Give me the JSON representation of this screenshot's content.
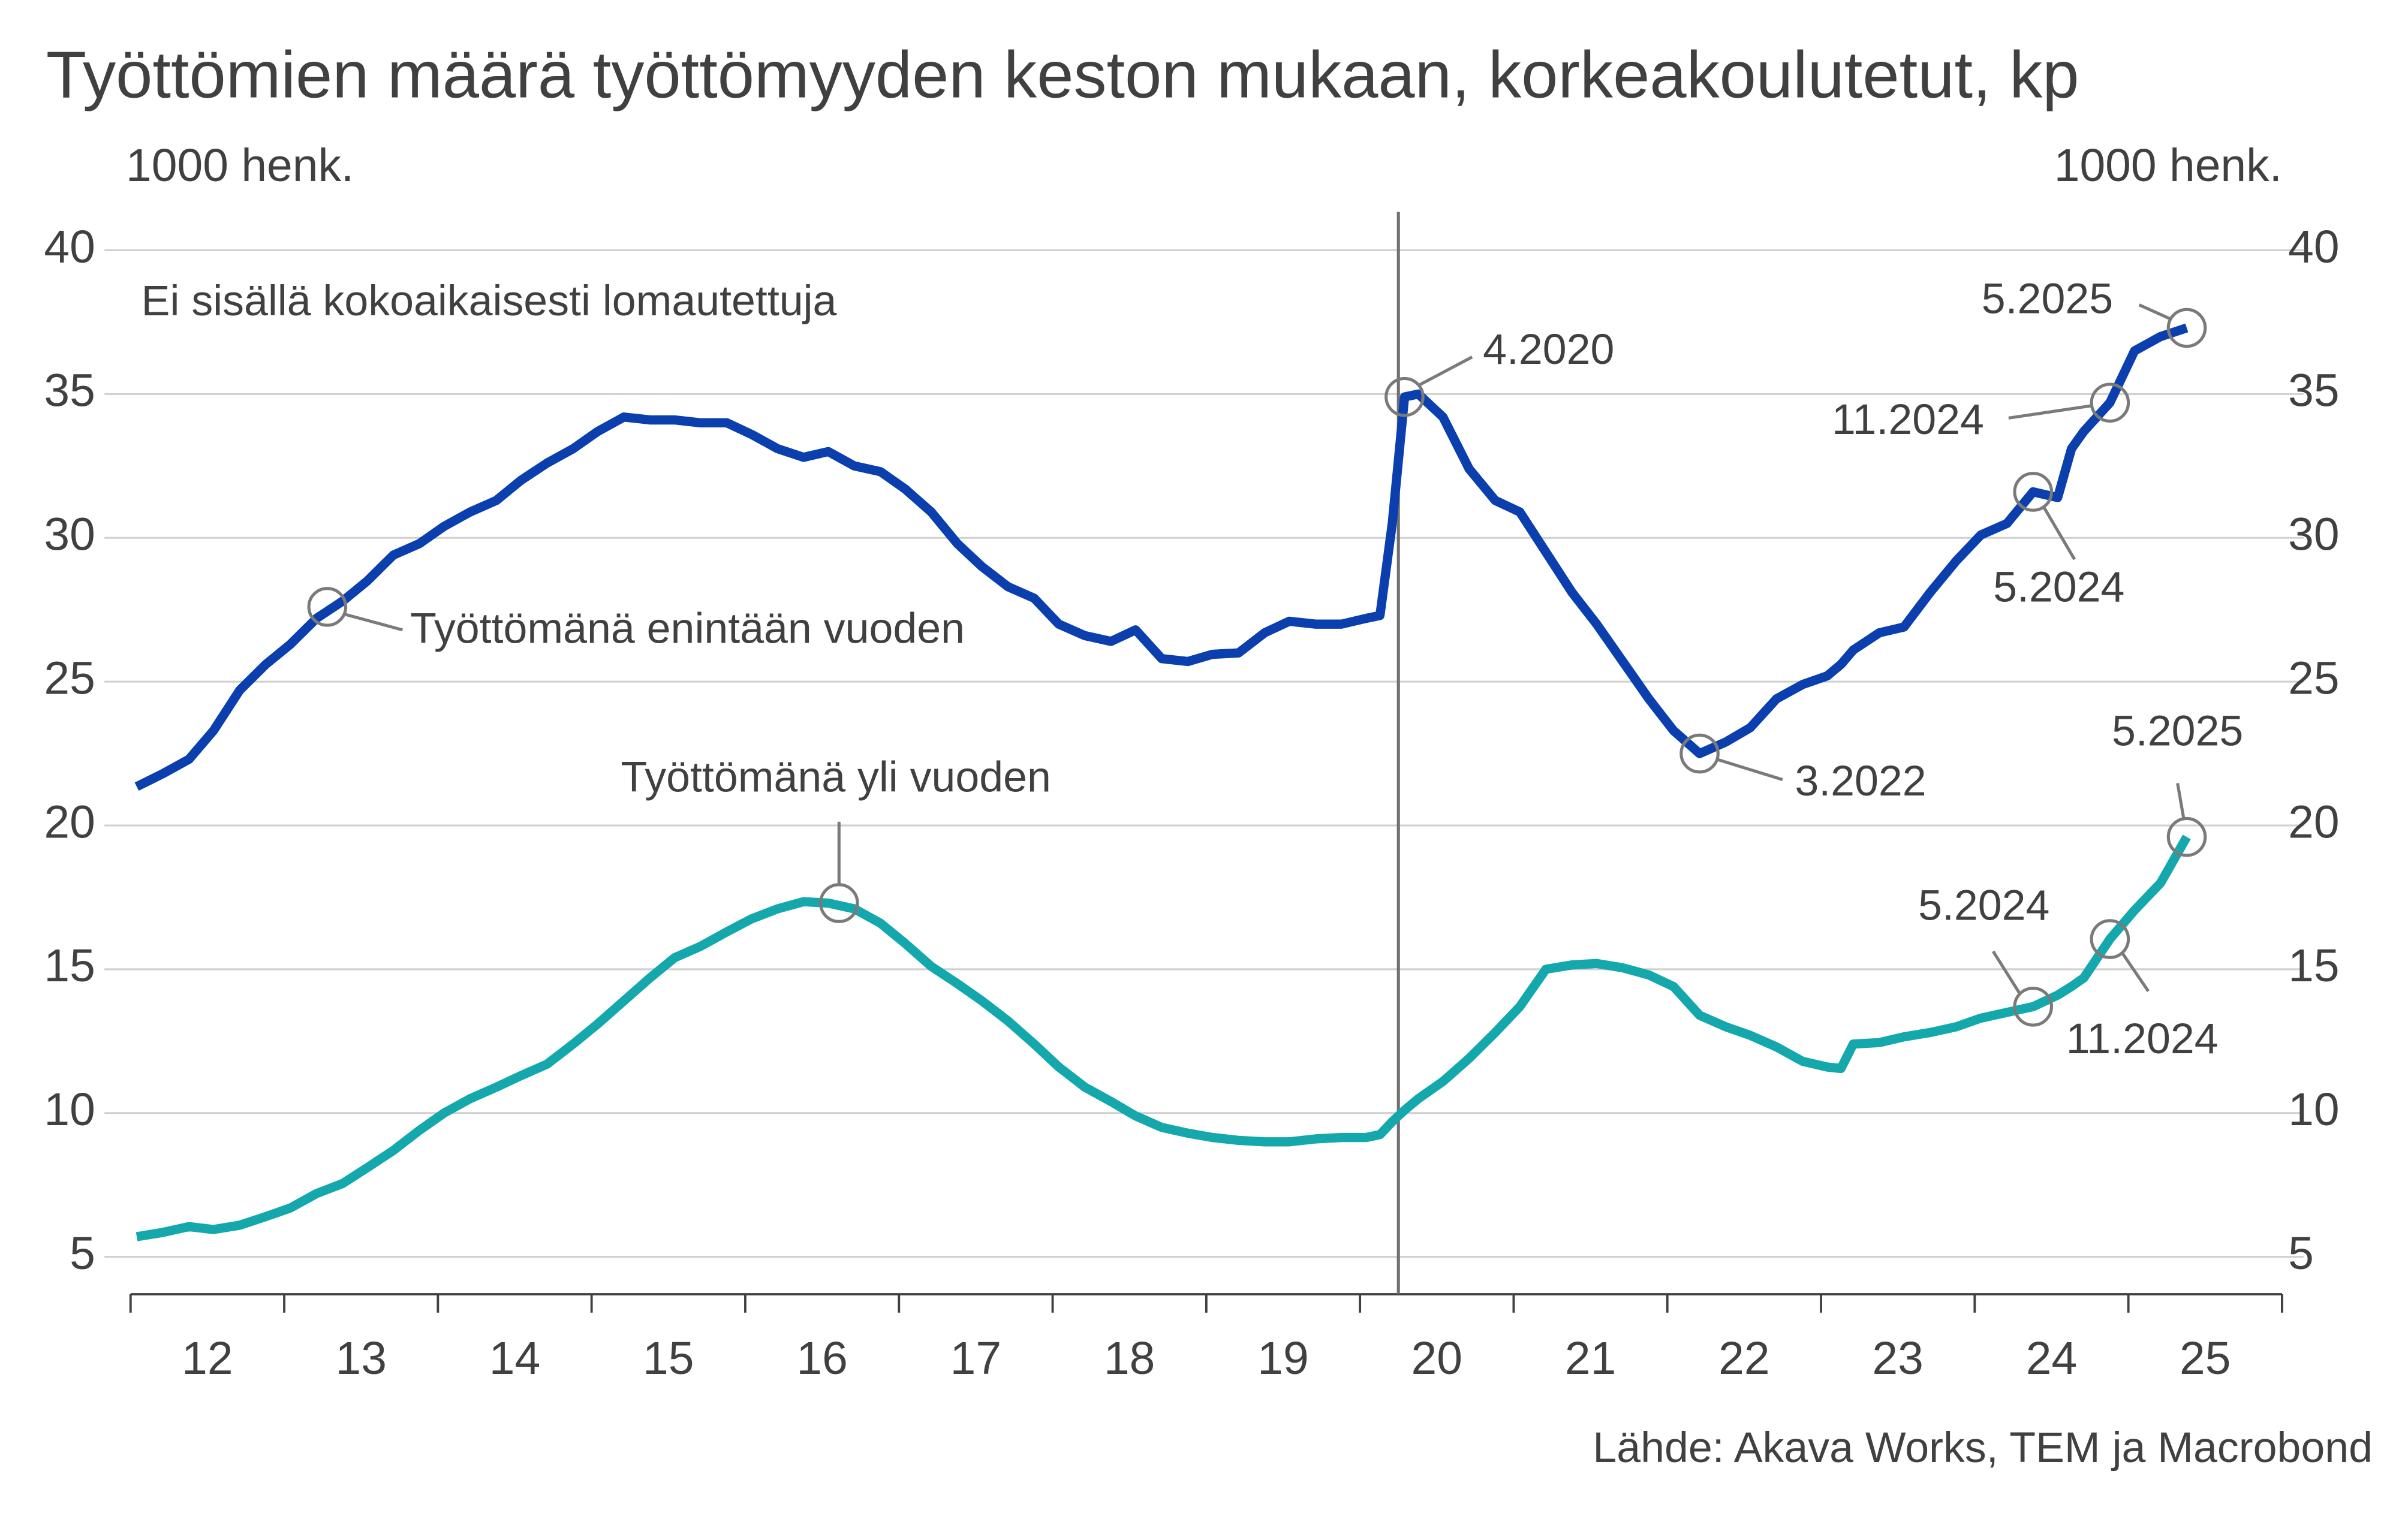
{
  "chart_data": {
    "type": "line",
    "title": "Työttömien määrä työttömyyden keston mukaan, korkeakoulutetut, kp",
    "y_label": "1000 henk.",
    "y2_label": "1000 henk.",
    "note": "Ei sisällä kokoaikaisesti lomautettuja",
    "source": "Lähde: Akava Works, TEM ja Macrobond",
    "x": [
      2012.04,
      2012.21,
      2012.38,
      2012.54,
      2012.71,
      2012.88,
      2013.04,
      2013.21,
      2013.38,
      2013.54,
      2013.71,
      2013.88,
      2014.04,
      2014.21,
      2014.38,
      2014.54,
      2014.71,
      2014.88,
      2015.04,
      2015.21,
      2015.38,
      2015.54,
      2015.71,
      2015.88,
      2016.04,
      2016.21,
      2016.38,
      2016.54,
      2016.71,
      2016.88,
      2017.04,
      2017.21,
      2017.38,
      2017.54,
      2017.71,
      2017.88,
      2018.04,
      2018.21,
      2018.38,
      2018.54,
      2018.71,
      2018.88,
      2019.04,
      2019.21,
      2019.38,
      2019.54,
      2019.71,
      2019.88,
      2020.04,
      2020.13,
      2020.21,
      2020.29,
      2020.38,
      2020.54,
      2020.71,
      2020.88,
      2021.04,
      2021.21,
      2021.38,
      2021.54,
      2021.71,
      2021.88,
      2022.04,
      2022.21,
      2022.38,
      2022.54,
      2022.71,
      2022.88,
      2023.04,
      2023.13,
      2023.21,
      2023.38,
      2023.54,
      2023.71,
      2023.88,
      2024.04,
      2024.21,
      2024.38,
      2024.54,
      2024.63,
      2024.71,
      2024.88,
      2025.04,
      2025.21,
      2025.38
    ],
    "series": [
      {
        "name": "Työttömänä enintään vuoden",
        "color": "#0a3fad",
        "values": [
          21.35,
          21.8,
          22.3,
          23.3,
          24.7,
          25.6,
          26.3,
          27.2,
          27.8,
          28.5,
          29.4,
          29.8,
          30.4,
          30.9,
          31.3,
          32.0,
          32.6,
          33.1,
          33.7,
          34.2,
          34.1,
          34.1,
          34.0,
          34.0,
          33.6,
          33.1,
          32.8,
          33.0,
          32.5,
          32.3,
          31.7,
          30.9,
          29.8,
          29.0,
          28.3,
          27.9,
          27.0,
          26.6,
          26.4,
          26.8,
          25.8,
          25.7,
          25.95,
          26.0,
          26.7,
          27.1,
          27.0,
          27.0,
          27.2,
          27.3,
          30.5,
          34.9,
          35.0,
          34.2,
          32.4,
          31.3,
          30.9,
          29.5,
          28.1,
          27.0,
          25.7,
          24.4,
          23.3,
          22.5,
          22.9,
          23.4,
          24.4,
          24.9,
          25.2,
          25.6,
          26.1,
          26.7,
          26.9,
          28.1,
          29.2,
          30.1,
          30.5,
          31.6,
          31.4,
          33.1,
          33.7,
          34.7,
          36.5,
          37.0,
          37.3
        ],
        "annotations": [
          {
            "label": "Työttömänä enintään vuoden",
            "x": 2013.28,
            "y": 27.6
          },
          {
            "label": "4.2020",
            "x": 2020.29,
            "y": 34.9
          },
          {
            "label": "3.2022",
            "x": 2022.21,
            "y": 22.5
          },
          {
            "label": "5.2024",
            "x": 2024.38,
            "y": 31.6
          },
          {
            "label": "11.2024",
            "x": 2024.88,
            "y": 34.7
          },
          {
            "label": "5.2025",
            "x": 2025.38,
            "y": 37.3
          }
        ]
      },
      {
        "name": "Työttömänä yli vuoden",
        "color": "#14a8ad",
        "values": [
          5.7,
          5.85,
          6.05,
          5.95,
          6.1,
          6.4,
          6.7,
          7.2,
          7.55,
          8.1,
          8.7,
          9.4,
          10.0,
          10.5,
          10.9,
          11.3,
          11.7,
          12.4,
          13.1,
          13.9,
          14.7,
          15.4,
          15.8,
          16.3,
          16.75,
          17.1,
          17.35,
          17.3,
          17.1,
          16.6,
          15.9,
          15.1,
          14.5,
          13.9,
          13.2,
          12.4,
          11.6,
          10.9,
          10.4,
          9.9,
          9.5,
          9.3,
          9.15,
          9.05,
          9.0,
          9.0,
          9.1,
          9.15,
          9.15,
          9.25,
          9.7,
          10.1,
          10.5,
          11.1,
          11.9,
          12.8,
          13.7,
          15.0,
          15.15,
          15.2,
          15.05,
          14.8,
          14.4,
          13.4,
          13.0,
          12.7,
          12.3,
          11.8,
          11.6,
          11.55,
          12.4,
          12.45,
          12.65,
          12.8,
          13.0,
          13.3,
          13.5,
          13.7,
          14.1,
          14.4,
          14.7,
          16.05,
          17.05,
          18.0,
          19.6
        ],
        "annotations": [
          {
            "label": "Työttömänä yli vuoden",
            "x": 2016.61,
            "y": 17.3
          },
          {
            "label": "5.2024",
            "x": 2024.38,
            "y": 13.7
          },
          {
            "label": "11.2024",
            "x": 2024.88,
            "y": 16.05
          },
          {
            "label": "5.2025",
            "x": 2025.38,
            "y": 19.6
          }
        ]
      }
    ],
    "vline_x": 2020.25,
    "xlim": [
      2012,
      2026
    ],
    "xticks": [
      2012,
      2013,
      2014,
      2015,
      2016,
      2017,
      2018,
      2019,
      2020,
      2021,
      2022,
      2023,
      2024,
      2025,
      2026
    ],
    "year_labels": [
      {
        "value": 2012.5,
        "label": "12"
      },
      {
        "value": 2013.5,
        "label": "13"
      },
      {
        "value": 2014.5,
        "label": "14"
      },
      {
        "value": 2015.5,
        "label": "15"
      },
      {
        "value": 2016.5,
        "label": "16"
      },
      {
        "value": 2017.5,
        "label": "17"
      },
      {
        "value": 2018.5,
        "label": "18"
      },
      {
        "value": 2019.5,
        "label": "19"
      },
      {
        "value": 2020.5,
        "label": "20"
      },
      {
        "value": 2021.5,
        "label": "21"
      },
      {
        "value": 2022.5,
        "label": "22"
      },
      {
        "value": 2023.5,
        "label": "23"
      },
      {
        "value": 2024.5,
        "label": "24"
      },
      {
        "value": 2025.5,
        "label": "25"
      }
    ],
    "ylim": [
      3.7,
      40
    ],
    "yticks": [
      5,
      10,
      15,
      20,
      25,
      30,
      35,
      40
    ],
    "y2lim": [
      3.7,
      40
    ],
    "y2ticks": [
      5,
      10,
      15,
      20,
      25,
      30,
      35,
      40
    ],
    "grid": true
  }
}
